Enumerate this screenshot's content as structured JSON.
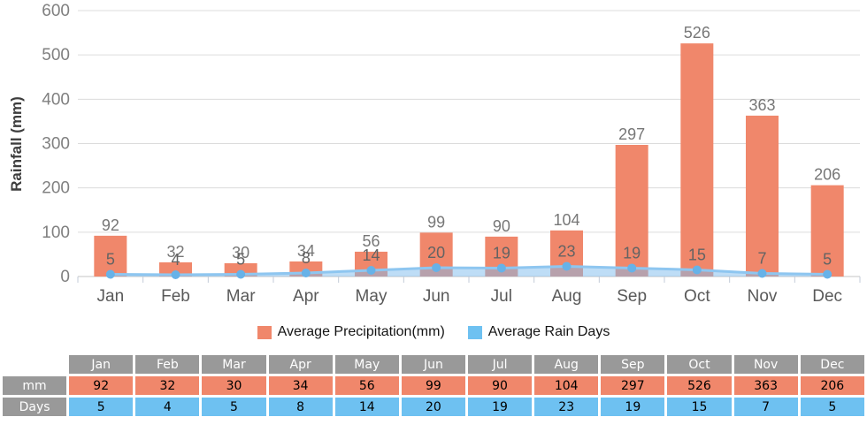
{
  "chart_data": {
    "type": "bar",
    "title": "",
    "categories": [
      "Jan",
      "Feb",
      "Mar",
      "Apr",
      "May",
      "Jun",
      "Jul",
      "Aug",
      "Sep",
      "Oct",
      "Nov",
      "Dec"
    ],
    "series": [
      {
        "name": "Average Precipitation(mm)",
        "type": "bar",
        "color": "#F0876B",
        "values": [
          92,
          32,
          30,
          34,
          56,
          99,
          90,
          104,
          297,
          526,
          363,
          206
        ]
      },
      {
        "name": "Average Rain Days",
        "type": "line",
        "color": "#6EC1F1",
        "line_color": "#8EC6F0",
        "area_color": "rgba(126,188,238,0.5)",
        "marker_color": "#67B2E8",
        "values": [
          5,
          4,
          5,
          8,
          14,
          20,
          19,
          23,
          19,
          15,
          7,
          5
        ]
      }
    ],
    "xlabel": "",
    "ylabel": "Rainfall (mm)",
    "ylim": [
      0,
      600
    ],
    "yticks": [
      0,
      100,
      200,
      300,
      400,
      500,
      600
    ],
    "grid": true,
    "legend_position": "bottom",
    "colors": {
      "grid_line": "#dcdcdc",
      "axis_line": "#c6c6c6",
      "x_tick": "#c3cbd8",
      "y_tick_label": "#808080",
      "bar_value_label": "#777777",
      "line_value_label": "#636363",
      "month_label": "#595959",
      "axis_title": "#3d3d3d"
    }
  },
  "table": {
    "corner_label": "",
    "column_headers": [
      "Jan",
      "Feb",
      "Mar",
      "Apr",
      "May",
      "Jun",
      "Jul",
      "Aug",
      "Sep",
      "Oct",
      "Nov",
      "Dec"
    ],
    "rows": [
      {
        "label": "mm",
        "color": "#F0876B",
        "values": [
          92,
          32,
          30,
          34,
          56,
          99,
          90,
          104,
          297,
          526,
          363,
          206
        ]
      },
      {
        "label": "Days",
        "color": "#6EC1F1",
        "values": [
          5,
          4,
          5,
          8,
          14,
          20,
          19,
          23,
          19,
          15,
          7,
          5
        ]
      }
    ],
    "header_bg": "#999999"
  }
}
